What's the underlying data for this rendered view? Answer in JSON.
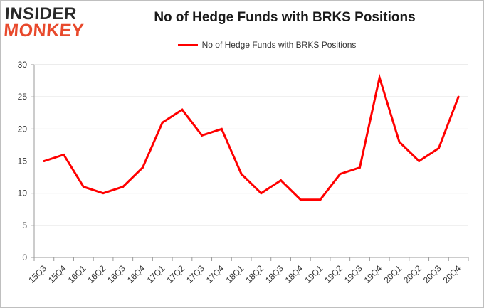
{
  "header": {
    "logo_line1": "INSIDER",
    "logo_line2": "MONKEY",
    "title": "No of Hedge Funds with BRKS Positions"
  },
  "chart_data": {
    "type": "line",
    "title": "No of Hedge Funds with BRKS Positions",
    "xlabel": "",
    "ylabel": "",
    "categories": [
      "15Q3",
      "15Q4",
      "16Q1",
      "16Q2",
      "16Q3",
      "16Q4",
      "17Q1",
      "17Q2",
      "17Q3",
      "17Q4",
      "18Q1",
      "18Q2",
      "18Q3",
      "18Q4",
      "19Q1",
      "19Q2",
      "19Q3",
      "19Q4",
      "20Q1",
      "20Q2",
      "20Q3",
      "20Q4"
    ],
    "series": [
      {
        "name": "No of Hedge Funds with BRKS Positions",
        "color": "#ff0000",
        "values": [
          15,
          16,
          11,
          10,
          11,
          14,
          21,
          23,
          19,
          20,
          13,
          10,
          12,
          9,
          9,
          13,
          14,
          28,
          18,
          15,
          17,
          25
        ]
      }
    ],
    "ylim": [
      0,
      30
    ],
    "yticks": [
      0,
      5,
      10,
      15,
      20,
      25,
      30
    ],
    "grid": true,
    "legend_position": "top"
  }
}
